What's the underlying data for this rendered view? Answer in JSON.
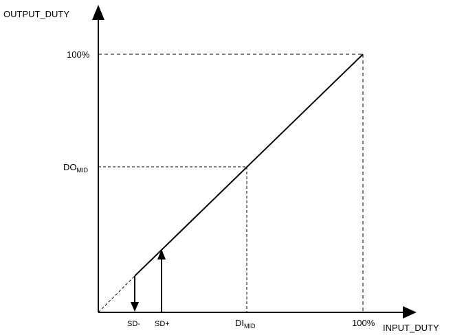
{
  "axes": {
    "y_label": "OUTPUT_DUTY",
    "x_label": "INPUT_DUTY"
  },
  "y_ticks": {
    "max": "100%",
    "mid_main": "DO",
    "mid_sub": "MID"
  },
  "x_ticks": {
    "sd_minus": "SD-",
    "sd_plus": "SD+",
    "mid_main": "DI",
    "mid_sub": "MID",
    "max": "100%"
  }
}
